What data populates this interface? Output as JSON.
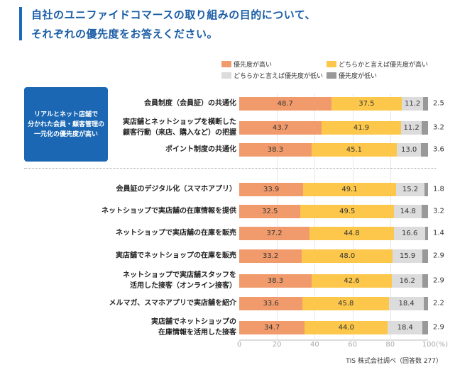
{
  "title": "自社のユニファイドコマースの取り組みの目的について、\nそれぞれの優先度をお答えください。",
  "group_label": "リアルとネット店舗で\n分かれた会員・顧客管理の\n一元化の優先度が高い",
  "source": "TIS 株式会社調べ（回答数 277）",
  "chart_data": {
    "type": "bar",
    "orientation": "horizontal-stacked",
    "xlim": [
      0,
      100
    ],
    "x_ticks": [
      "0",
      "20",
      "40",
      "60",
      "80",
      "100(%)"
    ],
    "legend": [
      {
        "name": "優先度が高い",
        "color": "#f19b6c"
      },
      {
        "name": "どちらかと言えば優先度が高い",
        "color": "#fcc74a"
      },
      {
        "name": "どちらかと言えば優先度が低い",
        "color": "#dcdcdc"
      },
      {
        "name": "優先度が低い",
        "color": "#999999"
      }
    ],
    "categories": [
      "会員制度（会員証）の共通化",
      "実店舗とネットショップを横断した\n顧客行動（来店、購入など）の把握",
      "ポイント制度の共通化",
      "会員証のデジタル化（スマホアプリ）",
      "ネットショップで実店舗の在庫情報を提供",
      "ネットショップで実店舗の在庫を販売",
      "実店舗でネットショップの在庫を販売",
      "ネットショップで実店舗スタッフを\n活用した接客（オンライン接客）",
      "メルマガ、スマホアプリで実店舗を紹介",
      "実店舗でネットショップの\n在庫情報を活用した接客"
    ],
    "series": [
      {
        "name": "優先度が高い",
        "values": [
          "48.7",
          "43.7",
          "38.3",
          "33.9",
          "32.5",
          "37.2",
          "33.2",
          "38.3",
          "33.6",
          "34.7"
        ]
      },
      {
        "name": "どちらかと言えば優先度が高い",
        "values": [
          "37.5",
          "41.9",
          "45.1",
          "49.1",
          "49.5",
          "44.8",
          "48.0",
          "42.6",
          "45.8",
          "44.0"
        ]
      },
      {
        "name": "どちらかと言えば優先度が低い",
        "values": [
          "11.2",
          "11.2",
          "13.0",
          "15.2",
          "14.8",
          "16.6",
          "15.9",
          "16.2",
          "18.4",
          "18.4"
        ]
      },
      {
        "name": "優先度が低い",
        "values": [
          "2.5",
          "3.2",
          "3.6",
          "1.8",
          "3.2",
          "1.4",
          "2.9",
          "2.9",
          "2.2",
          "2.9"
        ]
      }
    ]
  }
}
